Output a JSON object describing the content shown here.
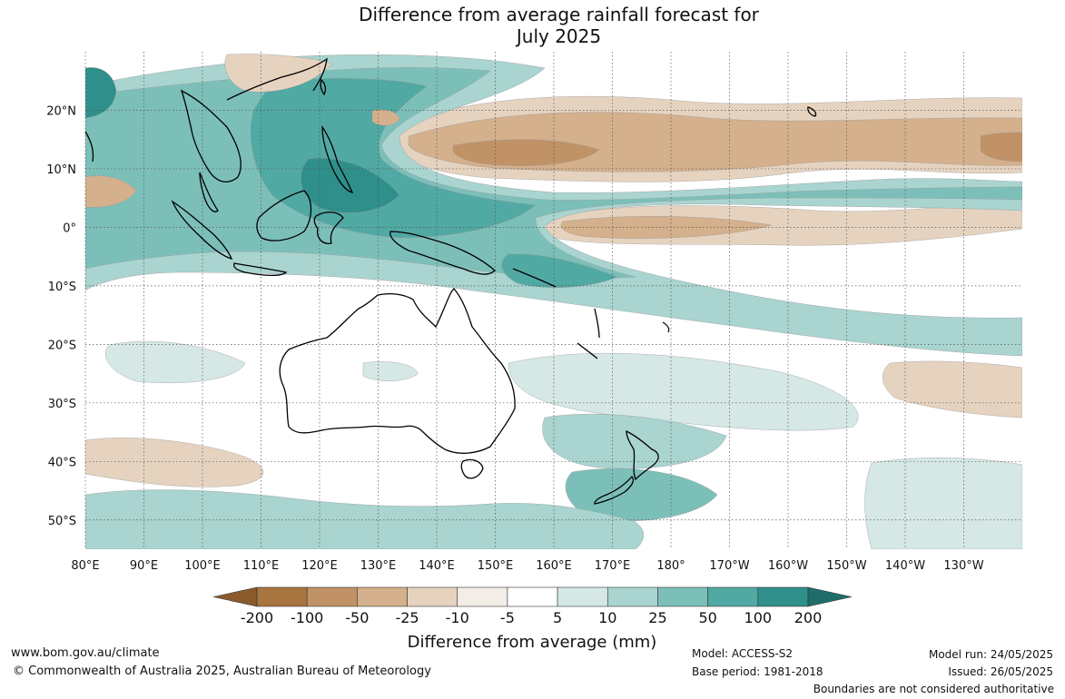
{
  "title": {
    "line1": "Difference from average rainfall forecast for",
    "line2": "July 2025"
  },
  "map": {
    "lat_labels": [
      "20°N",
      "10°N",
      "0°",
      "10°S",
      "20°S",
      "30°S",
      "40°S",
      "50°S"
    ],
    "lon_labels": [
      "80°E",
      "90°E",
      "100°E",
      "110°E",
      "120°E",
      "130°E",
      "140°E",
      "150°E",
      "160°E",
      "170°E",
      "180°",
      "170°W",
      "160°W",
      "150°W",
      "140°W",
      "130°W"
    ],
    "extent": {
      "lon_min": 80,
      "lon_max": 240,
      "lat_min": -55,
      "lat_max": 30
    },
    "regions": [
      {
        "name": "north-pacific-dry-band",
        "category": "-25"
      },
      {
        "name": "equatorial-pacific-dry-band",
        "category": "-10"
      },
      {
        "name": "maritime-continent-wet",
        "category": "50"
      },
      {
        "name": "western-pacific-warm-pool-wet",
        "category": "100"
      },
      {
        "name": "south-pacific-convergence-wet",
        "category": "25"
      },
      {
        "name": "southern-ocean-dry-west",
        "category": "-25"
      }
    ]
  },
  "colorbar": {
    "ticks": [
      "-200",
      "-100",
      "-50",
      "-25",
      "-10",
      "-5",
      "5",
      "10",
      "25",
      "50",
      "100",
      "200"
    ],
    "colors": [
      "#8b5a2b",
      "#a87440",
      "#c19266",
      "#d4b08c",
      "#e6d3bf",
      "#f2ede6",
      "#ffffff",
      "#d5e8e6",
      "#a9d4d0",
      "#7cbfb9",
      "#51a9a3",
      "#2f8f8b",
      "#1f6d6a"
    ],
    "title": "Difference from average (mm)"
  },
  "footer": {
    "website": "www.bom.gov.au/climate",
    "copyright": "© Commonwealth of Australia 2025, Australian Bureau of Meteorology",
    "model": "Model: ACCESS-S2",
    "base_period": "Base period: 1981-2018",
    "model_run": "Model run: 24/05/2025",
    "issued": "Issued: 26/05/2025",
    "boundaries_note": "Boundaries are not considered authoritative"
  }
}
